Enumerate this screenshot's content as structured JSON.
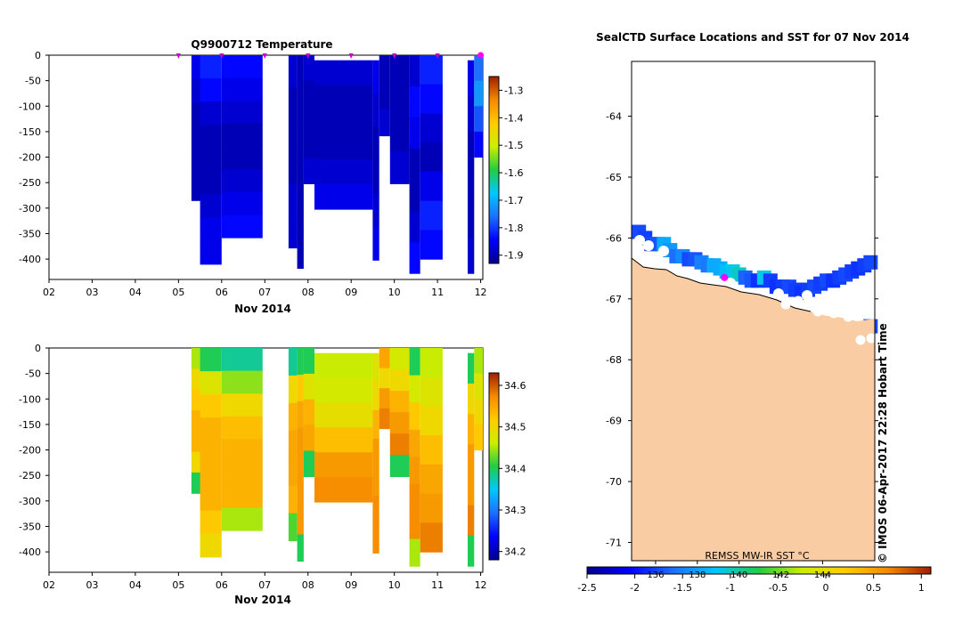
{
  "chart_data": [
    {
      "type": "heatmap",
      "title": "Q9900712  Temperature",
      "xlabel": "Nov 2014",
      "ylabel": "",
      "x_ticks": [
        "02",
        "03",
        "04",
        "05",
        "06",
        "07",
        "08",
        "09",
        "10",
        "11",
        "12"
      ],
      "xlim": [
        2,
        12.05
      ],
      "y_ticks": [
        "0",
        "-50",
        "-100",
        "-150",
        "-200",
        "-250",
        "-300",
        "-350",
        "-400"
      ],
      "ylim": [
        -440,
        0
      ],
      "colorbar_ticks": [
        "-1.3",
        "-1.4",
        "-1.5",
        "-1.6",
        "-1.7",
        "-1.8",
        "-1.9"
      ],
      "colorbar_range": [
        -1.93,
        -1.25
      ],
      "profile_markers": [
        5.0,
        6.0,
        7.0,
        8.0,
        9.0,
        10.0,
        11.0,
        12.0
      ],
      "surface_marker": 12.0,
      "profiles": [
        {
          "x": 5.3,
          "x2": 5.55,
          "top": 0,
          "bottom": -285,
          "values": [
            -1.86,
            -1.88,
            -1.9,
            -1.9,
            -1.9,
            -1.9
          ]
        },
        {
          "x": 5.5,
          "x2": 6.0,
          "top": 0,
          "bottom": -410,
          "values": [
            -1.82,
            -1.84,
            -1.88,
            -1.9,
            -1.9,
            -1.9,
            -1.88,
            -1.86,
            -1.86
          ]
        },
        {
          "x": 6.0,
          "x2": 6.95,
          "top": 0,
          "bottom": -358,
          "values": [
            -1.84,
            -1.86,
            -1.88,
            -1.9,
            -1.9,
            -1.88,
            -1.86,
            -1.84
          ]
        },
        {
          "x": 7.55,
          "x2": 7.75,
          "top": 0,
          "bottom": -378,
          "values": [
            -1.88,
            -1.9,
            -1.9,
            -1.9,
            -1.88,
            -1.88
          ]
        },
        {
          "x": 7.75,
          "x2": 7.9,
          "top": 0,
          "bottom": -418,
          "values": [
            -1.9,
            -1.9,
            -1.9,
            -1.9,
            -1.9,
            -1.9
          ]
        },
        {
          "x": 7.9,
          "x2": 8.15,
          "top": 0,
          "bottom": -252,
          "values": [
            -1.88,
            -1.9,
            -1.9,
            -1.9,
            -1.88
          ]
        },
        {
          "x": 8.15,
          "x2": 9.5,
          "top": -10,
          "bottom": -302,
          "values": [
            -1.88,
            -1.9,
            -1.9,
            -1.9,
            -1.88,
            -1.86
          ]
        },
        {
          "x": 9.5,
          "x2": 9.65,
          "top": -10,
          "bottom": -402,
          "values": [
            -1.86,
            -1.88,
            -1.9,
            -1.9,
            -1.88,
            -1.86
          ]
        },
        {
          "x": 9.65,
          "x2": 9.9,
          "top": 0,
          "bottom": -158,
          "values": [
            -1.9,
            -1.9,
            -1.88
          ]
        },
        {
          "x": 9.9,
          "x2": 10.35,
          "top": 0,
          "bottom": -252,
          "values": [
            -1.9,
            -1.9,
            -1.9,
            -1.88
          ]
        },
        {
          "x": 10.35,
          "x2": 10.6,
          "top": 0,
          "bottom": -428,
          "values": [
            -1.88,
            -1.84,
            -1.86,
            -1.9,
            -1.9,
            -1.88,
            -1.84
          ]
        },
        {
          "x": 10.6,
          "x2": 11.12,
          "top": 0,
          "bottom": -400,
          "values": [
            -1.82,
            -1.84,
            -1.88,
            -1.9,
            -1.86,
            -1.82,
            -1.84
          ]
        },
        {
          "x": 11.7,
          "x2": 11.85,
          "top": -10,
          "bottom": -428,
          "values": [
            -1.86,
            -1.88,
            -1.9,
            -1.9,
            -1.9,
            -1.88
          ]
        },
        {
          "x": 11.85,
          "x2": 12.05,
          "top": 0,
          "bottom": -200,
          "values": [
            -1.76,
            -1.72,
            -1.78,
            -1.84
          ]
        }
      ]
    },
    {
      "type": "heatmap",
      "title": "",
      "xlabel": "Nov 2014",
      "ylabel": "",
      "x_ticks": [
        "02",
        "03",
        "04",
        "05",
        "06",
        "07",
        "08",
        "09",
        "10",
        "11",
        "12"
      ],
      "xlim": [
        2,
        12.05
      ],
      "y_ticks": [
        "0",
        "-50",
        "-100",
        "-150",
        "-200",
        "-250",
        "-300",
        "-350",
        "-400"
      ],
      "ylim": [
        -440,
        0
      ],
      "colorbar_ticks": [
        "34.6",
        "34.5",
        "34.4",
        "34.3",
        "34.2"
      ],
      "colorbar_range": [
        34.18,
        34.63
      ],
      "profiles": [
        {
          "x": 5.3,
          "x2": 5.55,
          "top": 0,
          "bottom": -285,
          "values": [
            34.45,
            34.5,
            34.52,
            34.54,
            34.54,
            34.5,
            34.4
          ]
        },
        {
          "x": 5.5,
          "x2": 6.0,
          "top": 0,
          "bottom": -410,
          "values": [
            34.4,
            34.48,
            34.52,
            34.54,
            34.54,
            34.54,
            34.54,
            34.52,
            34.5
          ]
        },
        {
          "x": 6.0,
          "x2": 6.95,
          "top": 0,
          "bottom": -358,
          "values": [
            34.38,
            34.44,
            34.5,
            34.53,
            34.54,
            34.54,
            34.54,
            34.45
          ]
        },
        {
          "x": 7.55,
          "x2": 7.75,
          "top": 0,
          "bottom": -378,
          "values": [
            34.38,
            34.5,
            34.54,
            34.55,
            34.55,
            34.54,
            34.42
          ]
        },
        {
          "x": 7.75,
          "x2": 7.9,
          "top": 0,
          "bottom": -418,
          "values": [
            34.4,
            34.52,
            34.55,
            34.56,
            34.56,
            34.56,
            34.56,
            34.4
          ]
        },
        {
          "x": 7.9,
          "x2": 8.15,
          "top": 0,
          "bottom": -252,
          "values": [
            34.4,
            34.48,
            34.54,
            34.55,
            34.4
          ]
        },
        {
          "x": 8.15,
          "x2": 9.5,
          "top": -10,
          "bottom": -302,
          "values": [
            34.46,
            34.47,
            34.49,
            34.53,
            34.56,
            34.57
          ]
        },
        {
          "x": 9.5,
          "x2": 9.65,
          "top": -10,
          "bottom": -402,
          "values": [
            34.48,
            34.5,
            34.54,
            34.56,
            34.56,
            34.57,
            34.57
          ]
        },
        {
          "x": 9.65,
          "x2": 9.9,
          "top": 0,
          "bottom": -158,
          "values": [
            34.55,
            34.5,
            34.56,
            34.58
          ]
        },
        {
          "x": 9.9,
          "x2": 10.35,
          "top": 0,
          "bottom": -252,
          "values": [
            34.47,
            34.5,
            34.54,
            34.56,
            34.58,
            34.4
          ]
        },
        {
          "x": 10.35,
          "x2": 10.6,
          "top": 0,
          "bottom": -428,
          "values": [
            34.4,
            34.47,
            34.52,
            34.55,
            34.56,
            34.57,
            34.57,
            34.45
          ]
        },
        {
          "x": 10.6,
          "x2": 11.12,
          "top": 0,
          "bottom": -400,
          "values": [
            34.46,
            34.48,
            34.5,
            34.53,
            34.55,
            34.56,
            34.58
          ]
        },
        {
          "x": 11.7,
          "x2": 11.85,
          "top": -10,
          "bottom": -428,
          "values": [
            34.4,
            34.5,
            34.54,
            34.56,
            34.56,
            34.58,
            34.4
          ]
        },
        {
          "x": 11.85,
          "x2": 12.05,
          "top": 0,
          "bottom": -200,
          "values": [
            34.45,
            34.48,
            34.5,
            34.52
          ]
        }
      ]
    },
    {
      "type": "map",
      "title": "SealCTD Surface Locations and SST for 07 Nov 2014",
      "x_ticks": [
        "136",
        "138",
        "140",
        "142",
        "144"
      ],
      "xlim": [
        134.85,
        146.5
      ],
      "y_ticks": [
        "-64",
        "-65",
        "-66",
        "-67",
        "-68",
        "-69",
        "-70",
        "-71"
      ],
      "ylim": [
        -71.3,
        -63.1
      ],
      "sst_label": "REMSS MW-IR SST °C",
      "sst_ticks": [
        "-2.5",
        "-2",
        "-1.5",
        "-1",
        "-0.5",
        "0",
        "0.5",
        "1"
      ],
      "sst_range": [
        -2.5,
        1.1
      ],
      "credit": "© IMOS 06-Apr-2017 22:28 Hobart Time",
      "seal_position": {
        "lon": 139.3,
        "lat": -66.65
      },
      "sst_cells": [
        {
          "lon": 135.2,
          "lat": -65.9,
          "v": -1.75
        },
        {
          "lon": 135.5,
          "lat": -66.0,
          "v": -1.8
        },
        {
          "lon": 135.8,
          "lat": -66.1,
          "v": -1.75
        },
        {
          "lon": 136.1,
          "lat": -66.1,
          "v": -1.7
        },
        {
          "lon": 136.4,
          "lat": -66.1,
          "v": -1.3
        },
        {
          "lon": 136.7,
          "lat": -66.2,
          "v": -1.4
        },
        {
          "lon": 137.0,
          "lat": -66.3,
          "v": -1.6
        },
        {
          "lon": 137.3,
          "lat": -66.3,
          "v": -1.45
        },
        {
          "lon": 137.6,
          "lat": -66.35,
          "v": -1.75
        },
        {
          "lon": 137.9,
          "lat": -66.35,
          "v": -1.7
        },
        {
          "lon": 138.2,
          "lat": -66.4,
          "v": -1.5
        },
        {
          "lon": 138.5,
          "lat": -66.45,
          "v": -1.55
        },
        {
          "lon": 138.8,
          "lat": -66.45,
          "v": -1.3
        },
        {
          "lon": 139.1,
          "lat": -66.5,
          "v": -1.3
        },
        {
          "lon": 139.4,
          "lat": -66.55,
          "v": -1.2
        },
        {
          "lon": 139.7,
          "lat": -66.55,
          "v": -1.1
        },
        {
          "lon": 140.0,
          "lat": -66.6,
          "v": -1.0
        },
        {
          "lon": 140.3,
          "lat": -66.65,
          "v": -1.65
        },
        {
          "lon": 140.6,
          "lat": -66.7,
          "v": -1.7
        },
        {
          "lon": 140.9,
          "lat": -66.7,
          "v": -1.85
        },
        {
          "lon": 141.2,
          "lat": -66.65,
          "v": -1.1
        },
        {
          "lon": 141.5,
          "lat": -66.7,
          "v": -1.8
        },
        {
          "lon": 141.8,
          "lat": -66.8,
          "v": -1.85
        },
        {
          "lon": 142.1,
          "lat": -66.8,
          "v": -1.8
        },
        {
          "lon": 142.4,
          "lat": -66.8,
          "v": -1.75
        },
        {
          "lon": 142.7,
          "lat": -66.85,
          "v": -1.8
        },
        {
          "lon": 143.0,
          "lat": -66.9,
          "v": -1.85
        },
        {
          "lon": 143.3,
          "lat": -66.85,
          "v": -1.8
        },
        {
          "lon": 143.6,
          "lat": -66.8,
          "v": -1.75
        },
        {
          "lon": 143.9,
          "lat": -66.75,
          "v": -1.8
        },
        {
          "lon": 144.2,
          "lat": -66.7,
          "v": -1.75
        },
        {
          "lon": 144.5,
          "lat": -66.7,
          "v": -1.85
        },
        {
          "lon": 144.8,
          "lat": -66.65,
          "v": -1.8
        },
        {
          "lon": 145.1,
          "lat": -66.6,
          "v": -1.75
        },
        {
          "lon": 145.4,
          "lat": -66.55,
          "v": -1.8
        },
        {
          "lon": 145.7,
          "lat": -66.5,
          "v": -1.85
        },
        {
          "lon": 146.0,
          "lat": -66.45,
          "v": -1.8
        },
        {
          "lon": 146.3,
          "lat": -66.4,
          "v": -1.75
        },
        {
          "lon": 146.3,
          "lat": -67.45,
          "v": -1.75
        }
      ]
    }
  ]
}
